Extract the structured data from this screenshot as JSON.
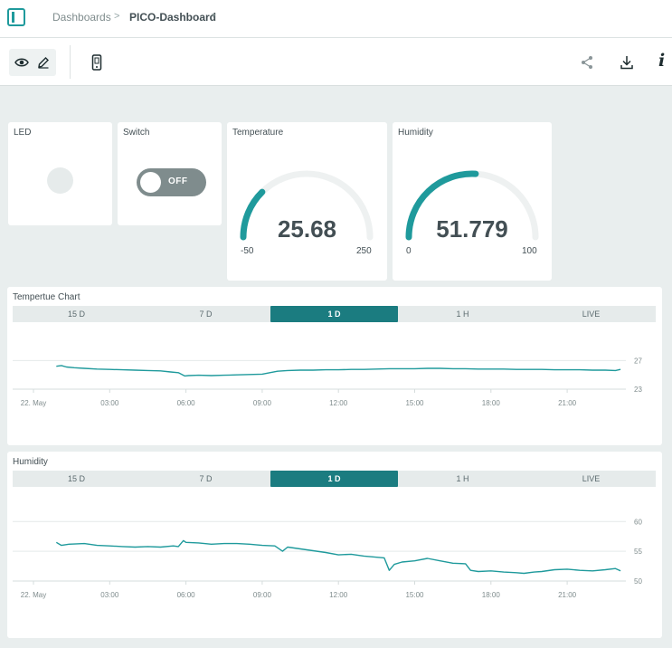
{
  "breadcrumb": {
    "root": "Dashboards",
    "separator": ">",
    "current": "PICO-Dashboard",
    "caret": "▾"
  },
  "toolbar": {
    "info_label": "i"
  },
  "icons": {
    "sidebar": "sidebar-toggle-icon",
    "view": "eye-icon",
    "edit": "pencil-icon",
    "device": "mobile-device-icon",
    "share": "share-icon",
    "download": "download-icon",
    "info": "info-icon"
  },
  "colors": {
    "accent": "#1f9a9c",
    "tab_active": "#1b7c80",
    "switch_off": "#7f8c8d",
    "track": "#eef1f1"
  },
  "widgets": {
    "led": {
      "title": "LED",
      "state": "off"
    },
    "switch": {
      "title": "Switch",
      "state": "OFF"
    },
    "temperature": {
      "title": "Temperature",
      "value": "25.68",
      "min": "-50",
      "max": "250",
      "min_num": -50,
      "max_num": 250,
      "value_num": 25.68
    },
    "humidity": {
      "title": "Humidity",
      "value": "51.779",
      "min": "0",
      "max": "100",
      "min_num": 0,
      "max_num": 100,
      "value_num": 51.779
    }
  },
  "charts": {
    "temperature": {
      "title": "Tempertue Chart",
      "tabs": [
        {
          "label": "15 D",
          "active": false
        },
        {
          "label": "7 D",
          "active": false
        },
        {
          "label": "1 D",
          "active": true
        },
        {
          "label": "1 H",
          "active": false
        },
        {
          "label": "LIVE",
          "active": false
        }
      ]
    },
    "humidity": {
      "title": "Humidity",
      "tabs": [
        {
          "label": "15 D",
          "active": false
        },
        {
          "label": "7 D",
          "active": false
        },
        {
          "label": "1 D",
          "active": true
        },
        {
          "label": "1 H",
          "active": false
        },
        {
          "label": "LIVE",
          "active": false
        }
      ]
    }
  },
  "chart_data": [
    {
      "type": "line",
      "title": "Tempertue Chart",
      "x_tick_labels": [
        "22. May",
        "03:00",
        "06:00",
        "09:00",
        "12:00",
        "15:00",
        "18:00",
        "21:00"
      ],
      "y_ticks": [
        23,
        27
      ],
      "ylim": [
        23,
        27.8
      ],
      "grid": true,
      "series": [
        {
          "x": [
            0.9,
            1.1,
            1.3,
            1.6,
            2.0,
            2.5,
            3.0,
            3.5,
            4.0,
            4.5,
            5.0,
            5.4,
            5.7,
            5.95,
            6.1,
            6.5,
            7.0,
            7.5,
            8.0,
            8.5,
            9.0,
            9.3,
            9.6,
            10.0,
            10.5,
            11.0,
            11.5,
            12.0,
            12.5,
            13.0,
            13.5,
            14.0,
            14.5,
            15.0,
            15.5,
            16.0,
            16.5,
            17.0,
            17.5,
            18.0,
            18.5,
            19.0,
            19.5,
            20.0,
            20.5,
            21.0,
            21.5,
            22.0,
            22.5,
            22.9,
            23.1
          ],
          "y": [
            26.2,
            26.3,
            26.1,
            26.0,
            25.9,
            25.8,
            25.75,
            25.7,
            25.65,
            25.6,
            25.55,
            25.4,
            25.3,
            24.85,
            24.9,
            24.95,
            24.9,
            24.95,
            25.0,
            25.05,
            25.1,
            25.3,
            25.5,
            25.6,
            25.65,
            25.65,
            25.7,
            25.7,
            25.75,
            25.75,
            25.8,
            25.85,
            25.85,
            25.85,
            25.9,
            25.9,
            25.85,
            25.85,
            25.8,
            25.8,
            25.8,
            25.75,
            25.75,
            25.75,
            25.7,
            25.7,
            25.7,
            25.65,
            25.65,
            25.6,
            25.75
          ]
        }
      ]
    },
    {
      "type": "line",
      "title": "Humidity",
      "x_tick_labels": [
        "22. May",
        "03:00",
        "06:00",
        "09:00",
        "12:00",
        "15:00",
        "18:00",
        "21:00"
      ],
      "y_ticks": [
        50,
        55,
        60
      ],
      "ylim": [
        50,
        60.5
      ],
      "grid": true,
      "series": [
        {
          "x": [
            0.9,
            1.1,
            1.4,
            2.0,
            2.5,
            3.0,
            3.5,
            4.0,
            4.5,
            5.0,
            5.5,
            5.7,
            5.9,
            6.0,
            6.5,
            7.0,
            7.5,
            8.0,
            8.5,
            9.0,
            9.5,
            9.8,
            10.0,
            10.5,
            11.0,
            11.5,
            12.0,
            12.5,
            13.0,
            13.5,
            13.8,
            14.0,
            14.2,
            14.5,
            15.0,
            15.5,
            16.0,
            16.5,
            17.0,
            17.2,
            17.5,
            18.0,
            18.5,
            19.0,
            19.3,
            19.7,
            20.0,
            20.5,
            21.0,
            21.5,
            22.0,
            22.5,
            22.9,
            23.1
          ],
          "y": [
            56.5,
            56.0,
            56.2,
            56.3,
            56.0,
            55.9,
            55.8,
            55.7,
            55.8,
            55.7,
            55.9,
            55.8,
            56.8,
            56.5,
            56.4,
            56.2,
            56.3,
            56.3,
            56.2,
            56.0,
            55.9,
            55.0,
            55.7,
            55.4,
            55.1,
            54.8,
            54.4,
            54.5,
            54.2,
            54.0,
            53.9,
            51.8,
            52.8,
            53.2,
            53.4,
            53.8,
            53.4,
            53.0,
            52.9,
            51.8,
            51.6,
            51.7,
            51.5,
            51.4,
            51.3,
            51.5,
            51.6,
            51.9,
            52.0,
            51.8,
            51.7,
            51.9,
            52.1,
            51.7
          ]
        }
      ]
    }
  ]
}
